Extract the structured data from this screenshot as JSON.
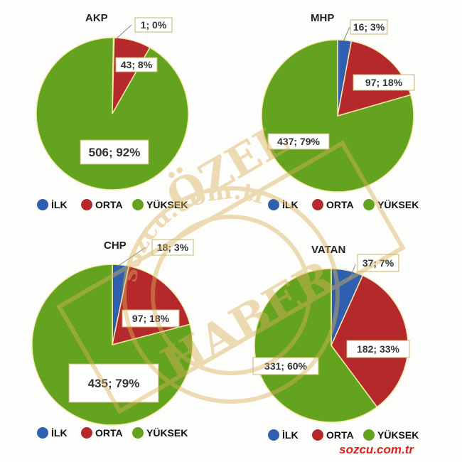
{
  "colors": {
    "ilk": "#2f5fae",
    "orta": "#b5282b",
    "yuksek": "#63a31f",
    "callout_border": "#c9b76a",
    "watermark": "#d8b25a",
    "source": "#e0211b"
  },
  "source_label": "sozcu.com.tr",
  "watermark": {
    "ring_text": "sozcu.com.tr",
    "top_text": "ÖZEL",
    "bottom_text": "HABER"
  },
  "chart_data": [
    {
      "type": "pie",
      "title": "AKP",
      "categories": [
        "İLK",
        "ORTA",
        "YÜKSEK"
      ],
      "values": [
        1,
        43,
        506
      ],
      "percents": [
        0,
        8,
        92
      ],
      "labels": [
        "1; 0%",
        "43; 8%",
        "506; 92%"
      ],
      "legend": [
        "İLK",
        "ORTA",
        "YÜKSEK"
      ],
      "legend_position": "bottom"
    },
    {
      "type": "pie",
      "title": "MHP",
      "categories": [
        "İLK",
        "ORTA",
        "YÜKSEK"
      ],
      "values": [
        16,
        97,
        437
      ],
      "percents": [
        3,
        18,
        79
      ],
      "labels": [
        "16; 3%",
        "97; 18%",
        "437; 79%"
      ],
      "legend": [
        "İLK",
        "ORTA",
        "YÜKSEK"
      ],
      "legend_position": "bottom"
    },
    {
      "type": "pie",
      "title": "CHP",
      "categories": [
        "İLK",
        "ORTA",
        "YÜKSEK"
      ],
      "values": [
        18,
        97,
        435
      ],
      "percents": [
        3,
        18,
        79
      ],
      "labels": [
        "18; 3%",
        "97; 18%",
        "435; 79%"
      ],
      "legend": [
        "İLK",
        "ORTA",
        "YÜKSEK"
      ],
      "legend_position": "bottom"
    },
    {
      "type": "pie",
      "title": "VATAN",
      "categories": [
        "İLK",
        "ORTA",
        "YÜKSEK"
      ],
      "values": [
        37,
        182,
        331
      ],
      "percents": [
        7,
        33,
        60
      ],
      "labels": [
        "37; 7%",
        "182; 33%",
        "331; 60%"
      ],
      "legend": [
        "İLK",
        "ORTA",
        "YÜKSEK"
      ],
      "legend_position": "bottom"
    }
  ]
}
